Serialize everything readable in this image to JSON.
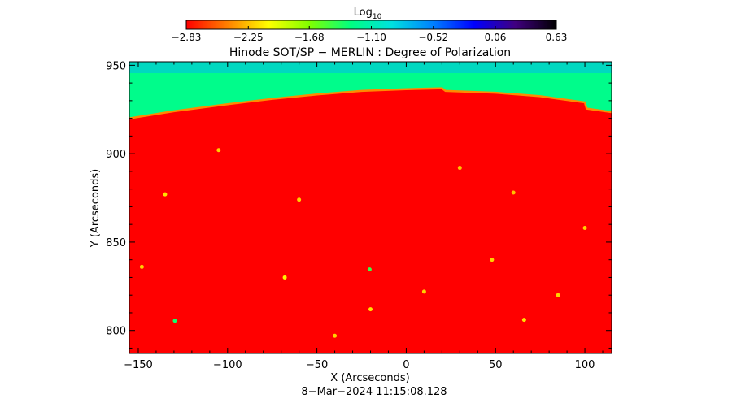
{
  "chart_data": {
    "type": "heatmap",
    "title": "Hinode SOT/SP − MERLIN : Degree of Polarization",
    "xlabel": "X (Arcseconds)",
    "ylabel": "Y (Arcseconds)",
    "xlim": [
      -155,
      115
    ],
    "ylim": [
      787,
      952
    ],
    "x_ticks": [
      -150,
      -100,
      -50,
      0,
      50,
      100
    ],
    "x_tick_labels": [
      "−150",
      "−100",
      "−50",
      "0",
      "50",
      "100"
    ],
    "y_ticks": [
      800,
      850,
      900,
      950
    ],
    "y_tick_labels": [
      "800",
      "850",
      "900",
      "950"
    ],
    "timestamp": "8−Mar−2024 11:15:08.128",
    "colorbar": {
      "label_base": "Log",
      "label_sub": "10",
      "range": [
        -2.83,
        0.63
      ],
      "ticks": [
        -2.83,
        -2.25,
        -1.68,
        -1.1,
        -0.52,
        0.06,
        0.63
      ],
      "tick_labels": [
        "−2.83",
        "−2.25",
        "−1.68",
        "−1.10",
        "−0.52",
        "0.06",
        "0.63"
      ],
      "colormap": [
        "#ff0000",
        "#ff8000",
        "#ffff00",
        "#80ff00",
        "#00ff80",
        "#00e0e0",
        "#0080ff",
        "#0000ff",
        "#400080",
        "#000000"
      ]
    },
    "limb_y": [
      [
        -155,
        920
      ],
      [
        -130,
        924
      ],
      [
        -100,
        928
      ],
      [
        -75,
        931
      ],
      [
        -50,
        933.5
      ],
      [
        -25,
        935.5
      ],
      [
        0,
        936.5
      ],
      [
        20,
        937
      ],
      [
        22,
        935.5
      ],
      [
        50,
        934.5
      ],
      [
        75,
        932.5
      ],
      [
        100,
        929
      ],
      [
        101,
        925.5
      ],
      [
        115,
        923.5
      ]
    ],
    "disk_value": -2.83,
    "offdisk_value": -1.25,
    "top_value": -0.75,
    "features": [
      {
        "x": -129.5,
        "y": 805.5,
        "value": -1.35
      },
      {
        "x": -20.5,
        "y": 834.5,
        "value": -1.45
      },
      {
        "x": -68,
        "y": 830,
        "value": -2.1
      },
      {
        "x": -135,
        "y": 877,
        "value": -2.15
      },
      {
        "x": -105,
        "y": 902,
        "value": -2.2
      },
      {
        "x": -20,
        "y": 812,
        "value": -2.15
      },
      {
        "x": 10,
        "y": 822,
        "value": -2.2
      },
      {
        "x": 48,
        "y": 840,
        "value": -2.2
      },
      {
        "x": 66,
        "y": 806,
        "value": -2.15
      },
      {
        "x": 100,
        "y": 858,
        "value": -2.2
      },
      {
        "x": -60,
        "y": 874,
        "value": -2.2
      },
      {
        "x": 30,
        "y": 892,
        "value": -2.25
      },
      {
        "x": -148,
        "y": 836,
        "value": -2.2
      },
      {
        "x": 85,
        "y": 820,
        "value": -2.2
      },
      {
        "x": -40,
        "y": 797,
        "value": -2.2
      },
      {
        "x": 60,
        "y": 878,
        "value": -2.25
      }
    ]
  }
}
